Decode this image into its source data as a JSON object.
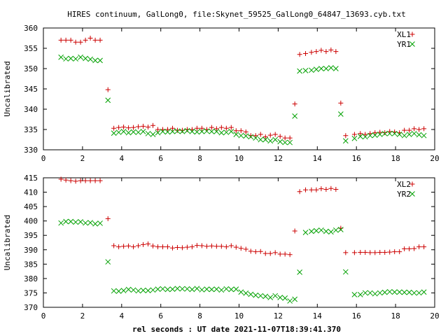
{
  "title": "HIRES continuum, GalLong0, file:Skynet_59525_GalLong0_64847_13693.cyb.txt",
  "xlabel": "rel seconds : UT date 2021-11-07T18:39:41.370",
  "colors": {
    "red": "#cc0000",
    "green": "#00a000"
  },
  "chart_data": [
    {
      "type": "scatter",
      "ylabel": "Uncalibrated",
      "xlim": [
        0,
        20
      ],
      "ylim": [
        330,
        360
      ],
      "xticks": [
        0,
        2,
        4,
        6,
        8,
        10,
        12,
        14,
        16,
        18,
        20
      ],
      "yticks": [
        330,
        335,
        340,
        345,
        350,
        355,
        360
      ],
      "legend": "top-right",
      "grid": false,
      "series": [
        {
          "name": "XL1",
          "marker": "plus",
          "color": "#cc0000",
          "x": [
            0.9,
            1.15,
            1.4,
            1.65,
            1.9,
            2.15,
            2.4,
            2.65,
            2.9,
            3.3,
            3.6,
            3.85,
            4.1,
            4.35,
            4.6,
            4.85,
            5.1,
            5.35,
            5.6,
            5.85,
            6.1,
            6.35,
            6.6,
            6.85,
            7.1,
            7.35,
            7.6,
            7.85,
            8.1,
            8.35,
            8.6,
            8.85,
            9.1,
            9.35,
            9.6,
            9.85,
            10.1,
            10.35,
            10.6,
            10.85,
            11.1,
            11.35,
            11.6,
            11.85,
            12.1,
            12.35,
            12.6,
            12.85,
            13.1,
            13.4,
            13.7,
            13.95,
            14.2,
            14.45,
            14.7,
            14.95,
            15.2,
            15.45,
            15.9,
            16.2,
            16.45,
            16.7,
            16.95,
            17.2,
            17.45,
            17.7,
            17.95,
            18.2,
            18.45,
            18.7,
            18.95,
            19.2,
            19.45
          ],
          "y": [
            357,
            357,
            357,
            356.5,
            356.5,
            357,
            357.5,
            357,
            357,
            344.8,
            335.3,
            335.5,
            335.6,
            335.4,
            335.5,
            335.7,
            335.8,
            335.6,
            336,
            335,
            335,
            335,
            335.3,
            334.8,
            334.8,
            335,
            335,
            335.3,
            335.3,
            335,
            335.5,
            335.2,
            335.5,
            335.3,
            335.5,
            334.7,
            334.7,
            334.4,
            333.5,
            333.5,
            333.8,
            333.2,
            333.6,
            333.8,
            333.3,
            332.9,
            332.9,
            341.3,
            353.5,
            353.7,
            354,
            354.2,
            354.5,
            354.2,
            354.6,
            354.2,
            341.5,
            333.5,
            333.8,
            334,
            333.8,
            334,
            334.2,
            334.3,
            334.2,
            334.5,
            334.4,
            334.2,
            334.8,
            334.8,
            335.2,
            335,
            335.2
          ]
        },
        {
          "name": "YR1",
          "marker": "cross",
          "color": "#00a000",
          "x": [
            0.9,
            1.15,
            1.4,
            1.65,
            1.9,
            2.15,
            2.4,
            2.65,
            2.9,
            3.3,
            3.6,
            3.85,
            4.1,
            4.35,
            4.6,
            4.85,
            5.1,
            5.35,
            5.6,
            5.85,
            6.1,
            6.35,
            6.6,
            6.85,
            7.1,
            7.35,
            7.6,
            7.85,
            8.1,
            8.35,
            8.6,
            8.85,
            9.1,
            9.35,
            9.6,
            9.85,
            10.1,
            10.35,
            10.6,
            10.85,
            11.1,
            11.35,
            11.6,
            11.85,
            12.1,
            12.35,
            12.6,
            12.85,
            13.1,
            13.4,
            13.7,
            13.95,
            14.2,
            14.45,
            14.7,
            14.95,
            15.2,
            15.45,
            15.9,
            16.2,
            16.45,
            16.7,
            16.95,
            17.2,
            17.45,
            17.7,
            17.95,
            18.2,
            18.45,
            18.7,
            18.95,
            19.2,
            19.45
          ],
          "y": [
            352.8,
            352.4,
            352.5,
            352.4,
            352.8,
            352.5,
            352.3,
            352,
            352,
            342.2,
            334.1,
            334.3,
            334.5,
            334.2,
            334.4,
            334.3,
            334.5,
            334,
            333.8,
            334.2,
            334.5,
            334.4,
            334.5,
            334.6,
            334.5,
            334.7,
            334.5,
            334.4,
            334.5,
            334.6,
            334.5,
            334.5,
            334.2,
            334.3,
            334.5,
            333.8,
            333.5,
            333.4,
            333.2,
            332.9,
            332.5,
            332.5,
            332.2,
            332.5,
            332,
            331.8,
            331.8,
            338.3,
            349.4,
            349.5,
            349.6,
            349.8,
            350,
            350,
            350.2,
            350,
            338.8,
            332.2,
            332.8,
            333.3,
            333.2,
            333.5,
            333.6,
            333.8,
            334,
            334,
            334,
            333.8,
            333.5,
            333.8,
            334,
            333.7,
            333.5
          ]
        }
      ]
    },
    {
      "type": "scatter",
      "ylabel": "Uncalibrated",
      "xlim": [
        0,
        20
      ],
      "ylim": [
        370,
        415
      ],
      "xticks": [
        0,
        2,
        4,
        6,
        8,
        10,
        12,
        14,
        16,
        18,
        20
      ],
      "yticks": [
        370,
        375,
        380,
        385,
        390,
        395,
        400,
        405,
        410,
        415
      ],
      "legend": "top-right",
      "grid": false,
      "series": [
        {
          "name": "XL2",
          "marker": "plus",
          "color": "#cc0000",
          "x": [
            0.9,
            1.15,
            1.4,
            1.65,
            1.9,
            2.15,
            2.4,
            2.65,
            2.9,
            3.3,
            3.6,
            3.85,
            4.1,
            4.35,
            4.6,
            4.85,
            5.1,
            5.35,
            5.6,
            5.85,
            6.1,
            6.35,
            6.6,
            6.85,
            7.1,
            7.35,
            7.6,
            7.85,
            8.1,
            8.35,
            8.6,
            8.85,
            9.1,
            9.35,
            9.6,
            9.85,
            10.1,
            10.35,
            10.6,
            10.85,
            11.1,
            11.35,
            11.6,
            11.85,
            12.1,
            12.35,
            12.6,
            12.85,
            13.1,
            13.4,
            13.7,
            13.95,
            14.2,
            14.45,
            14.7,
            14.95,
            15.2,
            15.45,
            15.9,
            16.2,
            16.45,
            16.7,
            16.95,
            17.2,
            17.45,
            17.7,
            17.95,
            18.2,
            18.45,
            18.7,
            18.95,
            19.2,
            19.45
          ],
          "y": [
            414.5,
            414.2,
            414,
            413.8,
            414,
            414,
            414,
            414,
            414,
            400.8,
            391.4,
            391,
            391.2,
            391.3,
            391,
            391.4,
            391.8,
            392,
            391.3,
            391,
            391,
            391,
            390.6,
            390.8,
            390.7,
            390.9,
            391,
            391.5,
            391.4,
            391.2,
            391.3,
            391.2,
            391.2,
            391,
            391.4,
            390.9,
            390.5,
            390.2,
            389.5,
            389.3,
            389.4,
            388.7,
            388.7,
            389,
            388.5,
            388.5,
            388.3,
            396.5,
            410.2,
            410.8,
            410.8,
            410.8,
            411.2,
            411,
            411.3,
            411,
            397.5,
            389,
            389,
            389.1,
            389.1,
            389,
            389,
            389.1,
            389.1,
            389.2,
            389.3,
            389.3,
            390.3,
            390.3,
            390.4,
            391,
            391
          ]
        },
        {
          "name": "YR2",
          "marker": "cross",
          "color": "#00a000",
          "x": [
            0.9,
            1.15,
            1.4,
            1.65,
            1.9,
            2.15,
            2.4,
            2.65,
            2.9,
            3.3,
            3.6,
            3.85,
            4.1,
            4.35,
            4.6,
            4.85,
            5.1,
            5.35,
            5.6,
            5.85,
            6.1,
            6.35,
            6.6,
            6.85,
            7.1,
            7.35,
            7.6,
            7.85,
            8.1,
            8.35,
            8.6,
            8.85,
            9.1,
            9.35,
            9.6,
            9.85,
            10.1,
            10.35,
            10.6,
            10.85,
            11.1,
            11.35,
            11.6,
            11.85,
            12.1,
            12.35,
            12.6,
            12.85,
            13.1,
            13.4,
            13.7,
            13.95,
            14.2,
            14.45,
            14.7,
            14.95,
            15.2,
            15.45,
            15.9,
            16.2,
            16.45,
            16.7,
            16.95,
            17.2,
            17.45,
            17.7,
            17.95,
            18.2,
            18.45,
            18.7,
            18.95,
            19.2,
            19.45
          ],
          "y": [
            399.3,
            399.8,
            399.8,
            399.6,
            399.7,
            399.3,
            399.4,
            399,
            399.2,
            385.8,
            375.7,
            375.6,
            375.8,
            376.2,
            376,
            375.7,
            375.9,
            375.8,
            376,
            376.3,
            376.4,
            376.2,
            376.3,
            376.5,
            376.4,
            376.4,
            376.2,
            376.5,
            376.1,
            376.3,
            376.2,
            376.3,
            376,
            376.4,
            376.2,
            376.3,
            375.3,
            374.9,
            374.5,
            374.2,
            374,
            373.8,
            373.4,
            374,
            373.4,
            373.2,
            372.2,
            372.8,
            382.2,
            396,
            396.4,
            396.6,
            396.8,
            396.4,
            396.2,
            396.8,
            397,
            382.3,
            374.4,
            374.4,
            375,
            375,
            374.7,
            375,
            375.2,
            375.4,
            375.3,
            375.3,
            375.2,
            375.2,
            375,
            375,
            375.3
          ]
        }
      ]
    }
  ]
}
